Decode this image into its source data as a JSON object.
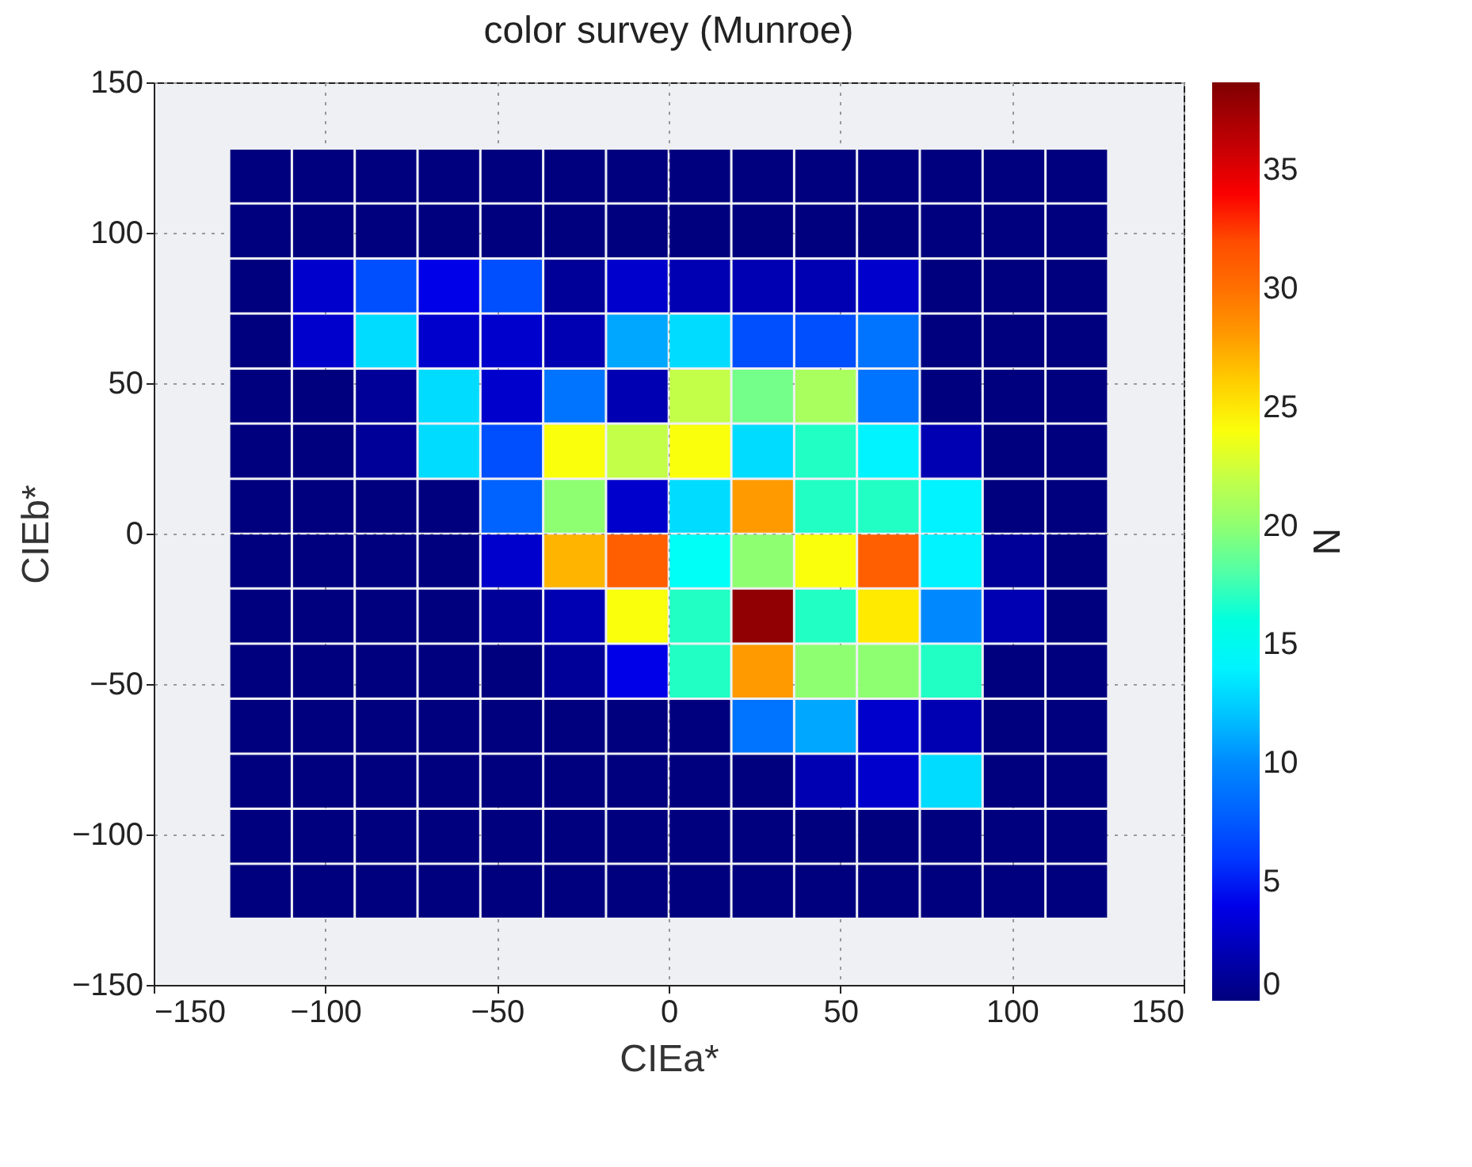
{
  "chart_data": {
    "type": "scatter",
    "title": "color survey (Munroe)",
    "xlabel": "CIEa*",
    "ylabel": "CIEb*",
    "clabel": "N",
    "marker": "square",
    "x": [
      -118.9,
      -100.6,
      -82.3,
      -64,
      -45.7,
      -27.4,
      -9.1,
      9.1,
      27.4,
      45.7,
      64,
      82.3,
      100.6,
      118.9,
      -118.9,
      -100.6,
      -82.3,
      -64,
      -45.7,
      -27.4,
      -9.1,
      9.1,
      27.4,
      45.7,
      64,
      82.3,
      100.6,
      118.9,
      -118.9,
      -100.6,
      -82.3,
      -64,
      -45.7,
      -27.4,
      -9.1,
      9.1,
      27.4,
      45.7,
      64,
      82.3,
      100.6,
      118.9,
      -118.9,
      -100.6,
      -82.3,
      -64,
      -45.7,
      -27.4,
      -9.1,
      9.1,
      27.4,
      45.7,
      64,
      82.3,
      100.6,
      118.9,
      -118.9,
      -100.6,
      -82.3,
      -64,
      -45.7,
      -27.4,
      -9.1,
      9.1,
      27.4,
      45.7,
      64,
      82.3,
      100.6,
      118.9,
      -118.9,
      -100.6,
      -82.3,
      -64,
      -45.7,
      -27.4,
      -9.1,
      9.1,
      27.4,
      45.7,
      64,
      82.3,
      100.6,
      118.9,
      -118.9,
      -100.6,
      -82.3,
      -64,
      -45.7,
      -27.4,
      -9.1,
      9.1,
      27.4,
      45.7,
      64,
      82.3,
      100.6,
      118.9,
      -118.9,
      -100.6,
      -82.3,
      -64,
      -45.7,
      -27.4,
      -9.1,
      9.1,
      27.4,
      45.7,
      64,
      82.3,
      100.6,
      118.9,
      -118.9,
      -100.6,
      -82.3,
      -64,
      -45.7,
      -27.4,
      -9.1,
      9.1,
      27.4,
      45.7,
      64,
      82.3,
      100.6,
      118.9,
      -118.9,
      -100.6,
      -82.3,
      -64,
      -45.7,
      -27.4,
      -9.1,
      9.1,
      27.4,
      45.7,
      64,
      82.3,
      100.6,
      118.9,
      -118.9,
      -100.6,
      -82.3,
      -64,
      -45.7,
      -27.4,
      -9.1,
      9.1,
      27.4,
      45.7,
      64,
      82.3,
      100.6,
      118.9,
      -118.9,
      -100.6,
      -82.3,
      -64,
      -45.7,
      -27.4,
      -9.1,
      9.1,
      27.4,
      45.7,
      64,
      82.3,
      100.6,
      118.9,
      -118.9,
      -100.6,
      -82.3,
      -64,
      -45.7,
      -27.4,
      -9.1,
      9.1,
      27.4,
      45.7,
      64,
      82.3,
      100.6,
      118.9,
      -118.9,
      -100.6,
      -82.3,
      -64,
      -45.7,
      -27.4,
      -9.1,
      9.1,
      27.4,
      45.7,
      64,
      82.3,
      100.6,
      118.9
    ],
    "values": [
      118.9,
      118.9,
      118.9,
      118.9,
      118.9,
      118.9,
      118.9,
      118.9,
      118.9,
      118.9,
      118.9,
      118.9,
      118.9,
      118.9,
      100.6,
      100.6,
      100.6,
      100.6,
      100.6,
      100.6,
      100.6,
      100.6,
      100.6,
      100.6,
      100.6,
      100.6,
      100.6,
      100.6,
      82.3,
      82.3,
      82.3,
      82.3,
      82.3,
      82.3,
      82.3,
      82.3,
      82.3,
      82.3,
      82.3,
      82.3,
      82.3,
      82.3,
      64,
      64,
      64,
      64,
      64,
      64,
      64,
      64,
      64,
      64,
      64,
      64,
      64,
      64,
      45.7,
      45.7,
      45.7,
      45.7,
      45.7,
      45.7,
      45.7,
      45.7,
      45.7,
      45.7,
      45.7,
      45.7,
      45.7,
      45.7,
      27.4,
      27.4,
      27.4,
      27.4,
      27.4,
      27.4,
      27.4,
      27.4,
      27.4,
      27.4,
      27.4,
      27.4,
      27.4,
      27.4,
      9.1,
      9.1,
      9.1,
      9.1,
      9.1,
      9.1,
      9.1,
      9.1,
      9.1,
      9.1,
      9.1,
      9.1,
      9.1,
      9.1,
      -9.1,
      -9.1,
      -9.1,
      -9.1,
      -9.1,
      -9.1,
      -9.1,
      -9.1,
      -9.1,
      -9.1,
      -9.1,
      -9.1,
      -9.1,
      -9.1,
      -27.4,
      -27.4,
      -27.4,
      -27.4,
      -27.4,
      -27.4,
      -27.4,
      -27.4,
      -27.4,
      -27.4,
      -27.4,
      -27.4,
      -27.4,
      -27.4,
      -45.7,
      -45.7,
      -45.7,
      -45.7,
      -45.7,
      -45.7,
      -45.7,
      -45.7,
      -45.7,
      -45.7,
      -45.7,
      -45.7,
      -45.7,
      -45.7,
      -64,
      -64,
      -64,
      -64,
      -64,
      -64,
      -64,
      -64,
      -64,
      -64,
      -64,
      -64,
      -64,
      -64,
      -82.3,
      -82.3,
      -82.3,
      -82.3,
      -82.3,
      -82.3,
      -82.3,
      -82.3,
      -82.3,
      -82.3,
      -82.3,
      -82.3,
      -82.3,
      -82.3,
      -100.6,
      -100.6,
      -100.6,
      -100.6,
      -100.6,
      -100.6,
      -100.6,
      -100.6,
      -100.6,
      -100.6,
      -100.6,
      -100.6,
      -100.6,
      -100.6,
      -118.9,
      -118.9,
      -118.9,
      -118.9,
      -118.9,
      -118.9,
      -118.9,
      -118.9,
      -118.9,
      -118.9,
      -118.9,
      -118.9,
      -118.9,
      -118.9
    ],
    "cvalues": [
      0,
      0,
      0,
      0,
      0,
      0,
      0,
      0,
      0,
      0,
      0,
      0,
      0,
      0,
      0,
      0,
      0,
      0,
      0,
      0,
      0,
      0,
      0,
      0,
      0,
      0,
      0,
      0,
      0,
      3,
      7,
      4,
      7,
      1,
      3,
      2,
      2,
      2,
      3,
      0,
      0,
      0,
      0,
      3,
      13,
      3,
      3,
      2,
      11,
      13,
      7,
      7,
      9,
      0,
      0,
      0,
      0,
      0,
      1,
      13,
      3,
      9,
      2,
      22,
      19,
      21,
      9,
      0,
      0,
      0,
      0,
      0,
      1,
      13,
      7,
      24,
      22,
      24,
      13,
      17,
      14,
      2,
      0,
      0,
      0,
      0,
      0,
      0,
      8,
      20,
      3,
      13,
      28,
      17,
      17,
      14,
      0,
      0,
      0,
      0,
      0,
      0,
      3,
      27,
      31,
      15,
      20,
      24,
      31,
      14,
      1,
      0,
      0,
      0,
      0,
      0,
      1,
      2,
      24,
      17,
      38,
      17,
      25,
      10,
      2,
      0,
      0,
      0,
      0,
      0,
      0,
      1,
      4,
      17,
      28,
      20,
      20,
      17,
      0,
      0,
      0,
      0,
      0,
      0,
      0,
      0,
      0,
      0,
      9,
      11,
      3,
      2,
      0,
      0,
      0,
      0,
      0,
      0,
      0,
      0,
      0,
      0,
      0,
      2,
      3,
      13,
      0,
      0,
      0,
      0,
      0,
      0,
      0,
      0,
      0,
      0,
      0,
      0,
      0,
      0,
      0,
      0,
      0,
      0,
      0,
      0,
      0,
      0,
      0,
      0,
      0,
      0,
      0,
      0,
      0,
      0
    ],
    "xlim": [
      -150,
      150
    ],
    "ylim": [
      -150,
      150
    ],
    "xticks": [
      -150,
      -100,
      -50,
      0,
      50,
      100,
      150
    ],
    "yticks": [
      -150,
      -100,
      -50,
      0,
      50,
      100,
      150
    ],
    "clim": [
      0,
      38.7
    ],
    "cticks": [
      0,
      5,
      10,
      15,
      20,
      25,
      30,
      35
    ],
    "grid": true
  }
}
